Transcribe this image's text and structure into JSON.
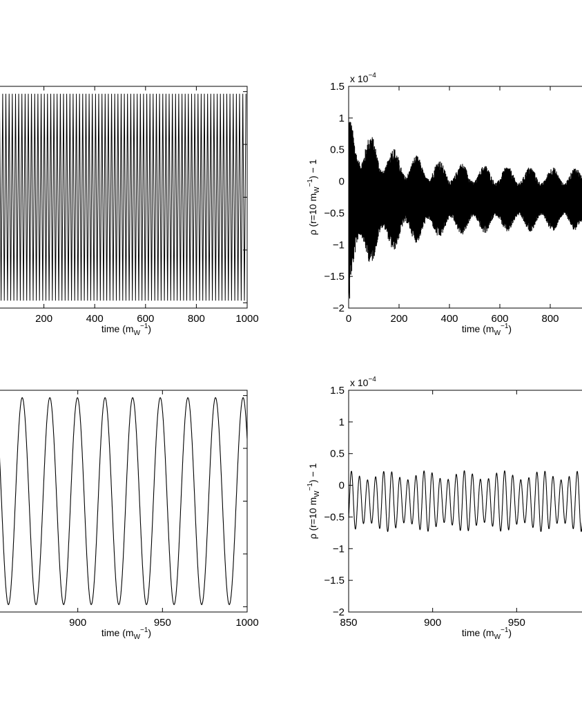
{
  "chart_data": [
    {
      "id": "top-left",
      "type": "line",
      "xlabel": "time (m_W^-1)",
      "ylabel": "",
      "xlim": [
        0,
        1000
      ],
      "ylim": [
        -1.05,
        1.05
      ],
      "xticks": [
        0,
        200,
        400,
        600,
        800,
        1000
      ],
      "xtick_labels": [
        "",
        "200",
        "400",
        "600",
        "800",
        "1000"
      ],
      "yticks": [
        -1,
        -0.5,
        0,
        0.5,
        1
      ],
      "series": [
        {
          "kind": "oscillation",
          "period": 12.6,
          "min": -0.98,
          "max": 0.98,
          "x_range": [
            0,
            1000
          ]
        }
      ]
    },
    {
      "id": "top-right",
      "type": "line",
      "xlabel": "time (m_W^-1)",
      "ylabel": "ρ (r=10 m_W^-1) − 1",
      "exponent_label": "x 10^-4",
      "xlim": [
        0,
        1000
      ],
      "ylim": [
        -2,
        1.5
      ],
      "xticks": [
        0,
        200,
        400,
        600,
        800
      ],
      "xtick_labels": [
        "0",
        "200",
        "400",
        "600",
        "800"
      ],
      "yticks": [
        -2,
        -1.5,
        -1,
        -0.5,
        0,
        0.5,
        1,
        1.5
      ],
      "ytick_labels": [
        "−2",
        "−1.5",
        "−1",
        "−0.5",
        "0",
        "0.5",
        "1",
        "1.5"
      ],
      "series": [
        {
          "kind": "noisy-oscillation",
          "center": -0.28,
          "initial_amplitude": 1.35,
          "final_amplitude": 0.5,
          "period": 4.2,
          "x_range": [
            0,
            1000
          ]
        }
      ]
    },
    {
      "id": "bottom-left",
      "type": "line",
      "xlabel": "time (m_W^-1)",
      "ylabel": "",
      "xlim": [
        850,
        1000
      ],
      "ylim": [
        -1.05,
        1.05
      ],
      "xticks": [
        900,
        950,
        1000
      ],
      "xtick_labels": [
        "900",
        "950",
        "1000"
      ],
      "yticks": [
        -1,
        -0.5,
        0,
        0.5,
        1
      ],
      "series": [
        {
          "kind": "oscillation",
          "period": 16.3,
          "min": -0.98,
          "max": 0.98,
          "peaks": [
            867.2,
            886.9,
            906.5,
            921.2,
            939.4,
            955.1,
            970.8
          ],
          "x_range": [
            850,
            1000
          ]
        }
      ]
    },
    {
      "id": "bottom-right",
      "type": "line",
      "xlabel": "time (m_W^-1)",
      "ylabel": "ρ (r=10 m_W^-1) − 1",
      "exponent_label": "x 10^-4",
      "xlim": [
        850,
        1000
      ],
      "ylim": [
        -2,
        1.5
      ],
      "xticks": [
        850,
        900,
        950
      ],
      "xtick_labels": [
        "850",
        "900",
        "950"
      ],
      "yticks": [
        -2,
        -1.5,
        -1,
        -0.5,
        0,
        0.5,
        1,
        1.5
      ],
      "ytick_labels": [
        "−2",
        "−1.5",
        "−1",
        "−0.5",
        "0",
        "0.5",
        "1",
        "1.5"
      ],
      "series": [
        {
          "kind": "oscillation",
          "period": 4.8,
          "center": -0.25,
          "amplitude": 0.48,
          "x_range": [
            850,
            1000
          ]
        }
      ]
    }
  ]
}
